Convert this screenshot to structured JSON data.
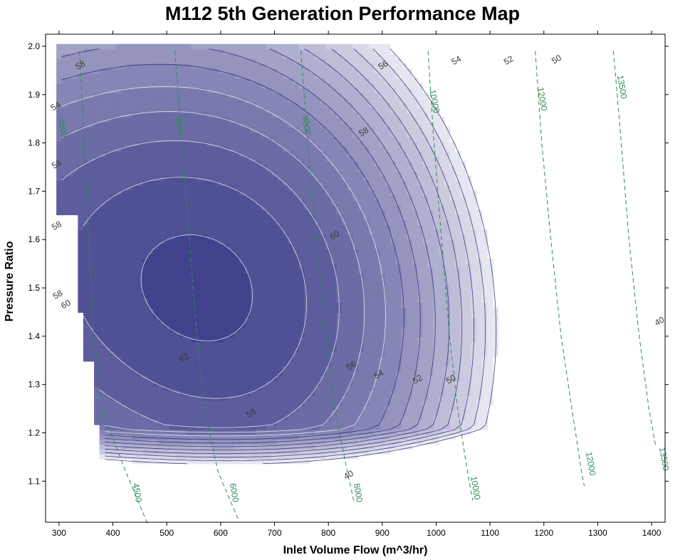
{
  "chart_data": {
    "type": "contour",
    "title": "M112 5th Generation Performance Map",
    "xlabel": "Inlet Volume Flow (m^3/hr)",
    "ylabel": "Pressure Ratio",
    "xlim": [
      275,
      1425
    ],
    "ylim": [
      1.015,
      2.025
    ],
    "xticks": [
      300,
      400,
      500,
      600,
      700,
      800,
      900,
      1000,
      1100,
      1200,
      1300,
      1400
    ],
    "yticks": [
      1.1,
      1.2,
      1.3,
      1.4,
      1.5,
      1.6,
      1.7,
      1.8,
      1.9,
      2.0
    ],
    "grid": false,
    "efficiency_levels": [
      40,
      42,
      44,
      46,
      48,
      50,
      52,
      54,
      56,
      58,
      60,
      62,
      64
    ],
    "efficiency_labels": [
      {
        "text": "40",
        "x": 1415,
        "y": 1.43
      },
      {
        "text": "40",
        "x": 838,
        "y": 1.112
      },
      {
        "text": "50",
        "x": 1224,
        "y": 1.972
      },
      {
        "text": "50",
        "x": 1028,
        "y": 1.31
      },
      {
        "text": "52",
        "x": 1135,
        "y": 1.97
      },
      {
        "text": "52",
        "x": 966,
        "y": 1.31
      },
      {
        "text": "54",
        "x": 1038,
        "y": 1.97
      },
      {
        "text": "54",
        "x": 294,
        "y": 1.875
      },
      {
        "text": "54",
        "x": 894,
        "y": 1.32
      },
      {
        "text": "56",
        "x": 902,
        "y": 1.96
      },
      {
        "text": "56",
        "x": 296,
        "y": 1.755
      },
      {
        "text": "56",
        "x": 843,
        "y": 1.338
      },
      {
        "text": "58",
        "x": 340,
        "y": 1.96
      },
      {
        "text": "58",
        "x": 866,
        "y": 1.822
      },
      {
        "text": "58",
        "x": 296,
        "y": 1.628
      },
      {
        "text": "58",
        "x": 298,
        "y": 1.485
      },
      {
        "text": "58",
        "x": 657,
        "y": 1.24
      },
      {
        "text": "60",
        "x": 812,
        "y": 1.608
      },
      {
        "text": "60",
        "x": 313,
        "y": 1.465
      },
      {
        "text": "62",
        "x": 533,
        "y": 1.355
      }
    ],
    "speed_lines": [
      {
        "rpm": 4500,
        "points": [
          [
            338,
            1.99
          ],
          [
            347,
            1.8
          ],
          [
            355,
            1.6
          ],
          [
            365,
            1.4
          ],
          [
            380,
            1.25
          ],
          [
            420,
            1.13
          ],
          [
            465,
            1.01
          ]
        ],
        "labels": [
          {
            "text": "4500",
            "x": 302,
            "y": 1.83
          },
          {
            "text": "4500",
            "x": 440,
            "y": 1.075
          }
        ]
      },
      {
        "rpm": 6000,
        "points": [
          [
            515,
            1.99
          ],
          [
            528,
            1.8
          ],
          [
            542,
            1.6
          ],
          [
            556,
            1.4
          ],
          [
            570,
            1.25
          ],
          [
            595,
            1.12
          ],
          [
            633,
            1.02
          ]
        ],
        "labels": [
          {
            "text": "6000",
            "x": 518,
            "y": 1.835
          },
          {
            "text": "6000",
            "x": 620,
            "y": 1.075
          }
        ]
      },
      {
        "rpm": 8000,
        "points": [
          [
            749,
            1.99
          ],
          [
            762,
            1.8
          ],
          [
            778,
            1.6
          ],
          [
            795,
            1.4
          ],
          [
            812,
            1.25
          ],
          [
            835,
            1.12
          ],
          [
            848,
            1.055
          ]
        ],
        "labels": [
          {
            "text": "8000",
            "x": 754,
            "y": 1.835
          },
          {
            "text": "8000",
            "x": 850,
            "y": 1.075
          }
        ]
      },
      {
        "rpm": 10000,
        "points": [
          [
            985,
            1.99
          ],
          [
            996,
            1.8
          ],
          [
            1010,
            1.6
          ],
          [
            1025,
            1.4
          ],
          [
            1040,
            1.25
          ],
          [
            1058,
            1.12
          ],
          [
            1068,
            1.06
          ]
        ],
        "labels": [
          {
            "text": "10000",
            "x": 992,
            "y": 1.885
          },
          {
            "text": "10000",
            "x": 1068,
            "y": 1.085
          }
        ]
      },
      {
        "rpm": 12000,
        "points": [
          [
            1184,
            1.99
          ],
          [
            1196,
            1.8
          ],
          [
            1213,
            1.6
          ],
          [
            1232,
            1.4
          ],
          [
            1252,
            1.25
          ],
          [
            1270,
            1.12
          ],
          [
            1275,
            1.09
          ]
        ],
        "labels": [
          {
            "text": "12000",
            "x": 1192,
            "y": 1.89
          },
          {
            "text": "12000",
            "x": 1282,
            "y": 1.135
          }
        ]
      },
      {
        "rpm": 13500,
        "points": [
          [
            1329,
            1.99
          ],
          [
            1340,
            1.85
          ],
          [
            1358,
            1.6
          ],
          [
            1377,
            1.4
          ],
          [
            1395,
            1.25
          ],
          [
            1408,
            1.17
          ]
        ],
        "labels": [
          {
            "text": "13500",
            "x": 1340,
            "y": 1.915
          },
          {
            "text": "13500",
            "x": 1418,
            "y": 1.145
          }
        ]
      }
    ],
    "colors": {
      "band_light": "#e6e6f0",
      "band_dark": "#42428c",
      "speed_line": "#2e8b57",
      "efficiency_line_dark": "#2a2a78",
      "efficiency_line_light": "#ffffff"
    }
  }
}
